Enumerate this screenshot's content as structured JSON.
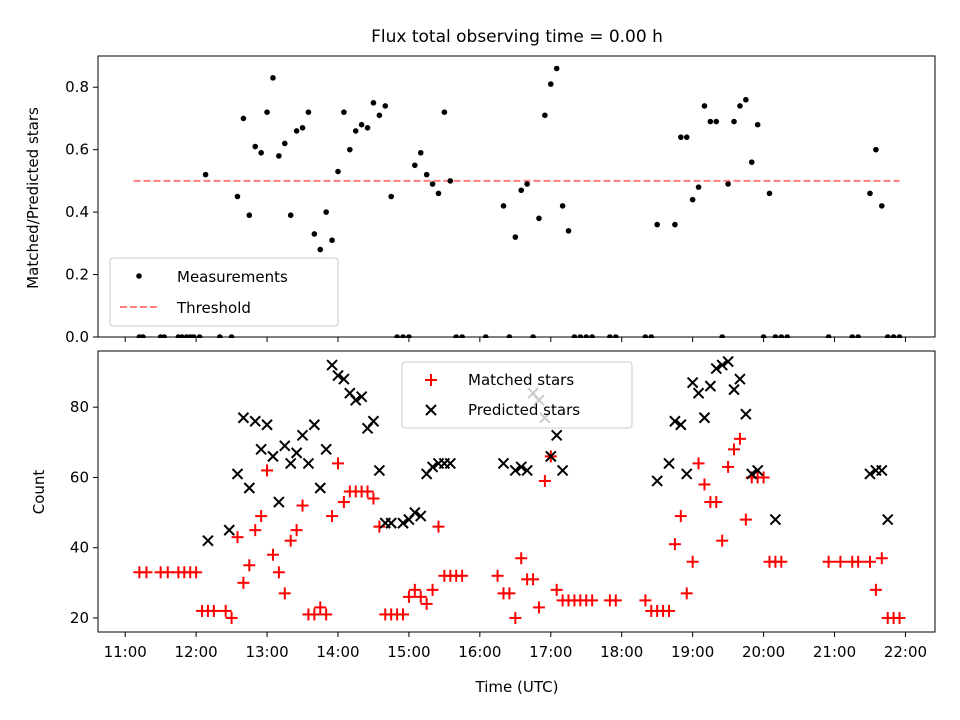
{
  "title": "Flux total observing time = 0.00 h",
  "chart_data": [
    {
      "type": "scatter",
      "ylabel": "Matched/Predicted stars",
      "ylim": [
        0,
        0.9
      ],
      "yticks": [
        0.0,
        0.2,
        0.4,
        0.6,
        0.8
      ],
      "ytick_labels": [
        "0.0",
        "0.2",
        "0.4",
        "0.6",
        "0.8"
      ],
      "legend_position": "lower-left",
      "legend": [
        {
          "label": "Measurements",
          "marker": "dot",
          "color": "#000000"
        },
        {
          "label": "Threshold",
          "marker": "dashed-line",
          "color": "#ff7f7f"
        }
      ],
      "threshold": {
        "value": 0.5,
        "x_range": [
          "11:07",
          "21:55"
        ],
        "color": "#ff7f7f"
      },
      "series": [
        {
          "name": "Measurements",
          "color": "#000000",
          "x": [
            "11:12",
            "11:15",
            "11:30",
            "11:33",
            "11:45",
            "11:48",
            "11:52",
            "11:55",
            "11:58",
            "12:03",
            "12:08",
            "12:20",
            "12:30",
            "12:35",
            "12:40",
            "12:45",
            "12:50",
            "12:55",
            "13:00",
            "13:05",
            "13:10",
            "13:15",
            "13:20",
            "13:25",
            "13:30",
            "13:35",
            "13:40",
            "13:45",
            "13:50",
            "13:55",
            "14:00",
            "14:05",
            "14:10",
            "14:15",
            "14:20",
            "14:25",
            "14:30",
            "14:35",
            "14:40",
            "14:45",
            "14:50",
            "14:55",
            "15:00",
            "15:05",
            "15:10",
            "15:15",
            "15:20",
            "15:25",
            "15:30",
            "15:35",
            "15:40",
            "15:45",
            "16:05",
            "16:20",
            "16:25",
            "16:30",
            "16:35",
            "16:40",
            "16:45",
            "16:50",
            "16:55",
            "17:00",
            "17:05",
            "17:10",
            "17:15",
            "17:20",
            "17:25",
            "17:30",
            "17:35",
            "17:50",
            "17:55",
            "18:20",
            "18:25",
            "18:30",
            "18:45",
            "18:50",
            "18:55",
            "19:00",
            "19:05",
            "19:10",
            "19:15",
            "19:20",
            "19:25",
            "19:30",
            "19:35",
            "19:40",
            "19:45",
            "19:50",
            "19:55",
            "20:00",
            "20:05",
            "20:10",
            "20:15",
            "20:20",
            "20:55",
            "21:15",
            "21:20",
            "21:30",
            "21:35",
            "21:40",
            "21:45",
            "21:50",
            "21:55"
          ],
          "values": [
            0,
            0,
            0,
            0,
            0,
            0,
            0,
            0,
            0,
            0,
            0.52,
            0,
            0,
            0.45,
            0.7,
            0.39,
            0.61,
            0.59,
            0.72,
            0.83,
            0.58,
            0.62,
            0.39,
            0.66,
            0.67,
            0.72,
            0.33,
            0.28,
            0.4,
            0.31,
            0.53,
            0.72,
            0.6,
            0.66,
            0.68,
            0.67,
            0.75,
            0.71,
            0.74,
            0.45,
            0,
            0,
            0,
            0.55,
            0.59,
            0.52,
            0.49,
            0.46,
            0.72,
            0.5,
            0,
            0,
            0,
            0.42,
            0,
            0.32,
            0.47,
            0.49,
            0,
            0.38,
            0.71,
            0.81,
            0.86,
            0.42,
            0.34,
            0,
            0,
            0,
            0,
            0,
            0,
            0,
            0,
            0.36,
            0.36,
            0.64,
            0.64,
            0.44,
            0.48,
            0.74,
            0.69,
            0.69,
            0,
            0.49,
            0.69,
            0.74,
            0.76,
            0.56,
            0.68,
            0,
            0.46,
            0,
            0,
            0,
            0,
            0,
            0,
            0.46,
            0.6,
            0.42,
            0,
            0,
            0
          ]
        }
      ]
    },
    {
      "type": "scatter",
      "xlabel": "Time (UTC)",
      "ylabel": "Count",
      "ylim": [
        16,
        96
      ],
      "yticks": [
        20,
        40,
        60,
        80
      ],
      "ytick_labels": [
        "20",
        "40",
        "60",
        "80"
      ],
      "legend_position": "top-center",
      "x_ticks": [
        "11:00",
        "12:00",
        "13:00",
        "14:00",
        "15:00",
        "16:00",
        "17:00",
        "18:00",
        "19:00",
        "20:00",
        "21:00",
        "22:00"
      ],
      "series": [
        {
          "name": "Matched stars",
          "color": "#ff0000",
          "marker": "plus",
          "x": [
            "11:12",
            "11:18",
            "11:30",
            "11:36",
            "11:45",
            "11:50",
            "11:55",
            "12:00",
            "12:05",
            "12:10",
            "12:15",
            "12:25",
            "12:30",
            "12:35",
            "12:40",
            "12:45",
            "12:50",
            "12:55",
            "13:00",
            "13:05",
            "13:10",
            "13:15",
            "13:20",
            "13:25",
            "13:30",
            "13:35",
            "13:40",
            "13:45",
            "13:50",
            "13:55",
            "14:00",
            "14:05",
            "14:10",
            "14:15",
            "14:20",
            "14:25",
            "14:30",
            "14:35",
            "14:40",
            "14:45",
            "14:50",
            "14:55",
            "15:00",
            "15:05",
            "15:10",
            "15:15",
            "15:20",
            "15:25",
            "15:30",
            "15:35",
            "15:40",
            "15:45",
            "16:15",
            "16:20",
            "16:25",
            "16:30",
            "16:35",
            "16:40",
            "16:45",
            "16:50",
            "16:55",
            "17:00",
            "17:05",
            "17:10",
            "17:15",
            "17:20",
            "17:25",
            "17:30",
            "17:35",
            "17:50",
            "17:55",
            "18:20",
            "18:25",
            "18:30",
            "18:35",
            "18:40",
            "18:45",
            "18:50",
            "18:55",
            "19:00",
            "19:05",
            "19:10",
            "19:15",
            "19:20",
            "19:25",
            "19:30",
            "19:35",
            "19:40",
            "19:45",
            "19:50",
            "19:55",
            "20:00",
            "20:05",
            "20:10",
            "20:15",
            "20:55",
            "21:05",
            "21:15",
            "21:20",
            "21:30",
            "21:35",
            "21:40",
            "21:45",
            "21:50",
            "21:55"
          ],
          "values": [
            33,
            33,
            33,
            33,
            33,
            33,
            33,
            33,
            22,
            22,
            22,
            22,
            20,
            43,
            30,
            35,
            45,
            49,
            62,
            38,
            33,
            27,
            42,
            45,
            52,
            21,
            21,
            23,
            21,
            49,
            64,
            53,
            56,
            56,
            56,
            56,
            54,
            46,
            21,
            21,
            21,
            21,
            26,
            28,
            26,
            24,
            28,
            46,
            32,
            32,
            32,
            32,
            32,
            27,
            27,
            20,
            37,
            31,
            31,
            23,
            59,
            66,
            28,
            25,
            25,
            25,
            25,
            25,
            25,
            25,
            25,
            25,
            22,
            22,
            22,
            22,
            41,
            49,
            27,
            36,
            64,
            58,
            53,
            53,
            42,
            63,
            68,
            71,
            48,
            60,
            60,
            60,
            36,
            36,
            36,
            36,
            36,
            36,
            36,
            36,
            28,
            37,
            20,
            20,
            20
          ]
        },
        {
          "name": "Predicted stars",
          "color": "#000000",
          "marker": "x",
          "x": [
            "12:10",
            "12:28",
            "12:35",
            "12:40",
            "12:45",
            "12:50",
            "12:55",
            "13:00",
            "13:05",
            "13:10",
            "13:15",
            "13:20",
            "13:25",
            "13:30",
            "13:35",
            "13:40",
            "13:45",
            "13:50",
            "13:55",
            "14:00",
            "14:05",
            "14:10",
            "14:15",
            "14:20",
            "14:25",
            "14:30",
            "14:35",
            "14:40",
            "14:45",
            "14:55",
            "15:00",
            "15:05",
            "15:10",
            "15:15",
            "15:20",
            "15:25",
            "15:30",
            "15:35",
            "16:20",
            "16:30",
            "16:35",
            "16:40",
            "16:45",
            "16:50",
            "16:55",
            "17:00",
            "17:05",
            "17:10",
            "18:30",
            "18:40",
            "18:45",
            "18:50",
            "18:55",
            "19:00",
            "19:05",
            "19:10",
            "19:15",
            "19:20",
            "19:25",
            "19:30",
            "19:35",
            "19:40",
            "19:45",
            "19:50",
            "19:55",
            "20:10",
            "21:30",
            "21:35",
            "21:40",
            "21:45"
          ],
          "values": [
            42,
            45,
            61,
            77,
            57,
            76,
            68,
            75,
            66,
            53,
            69,
            64,
            67,
            72,
            64,
            75,
            57,
            68,
            92,
            89,
            88,
            84,
            82,
            83,
            74,
            76,
            62,
            47,
            47,
            47,
            48,
            50,
            49,
            61,
            63,
            64,
            64,
            64,
            64,
            62,
            63,
            62,
            84,
            82,
            77,
            66,
            72,
            62,
            59,
            64,
            76,
            75,
            61,
            87,
            84,
            77,
            86,
            91,
            92,
            93,
            85,
            88,
            78,
            61,
            62,
            48,
            61,
            62,
            62,
            48
          ]
        }
      ]
    }
  ]
}
